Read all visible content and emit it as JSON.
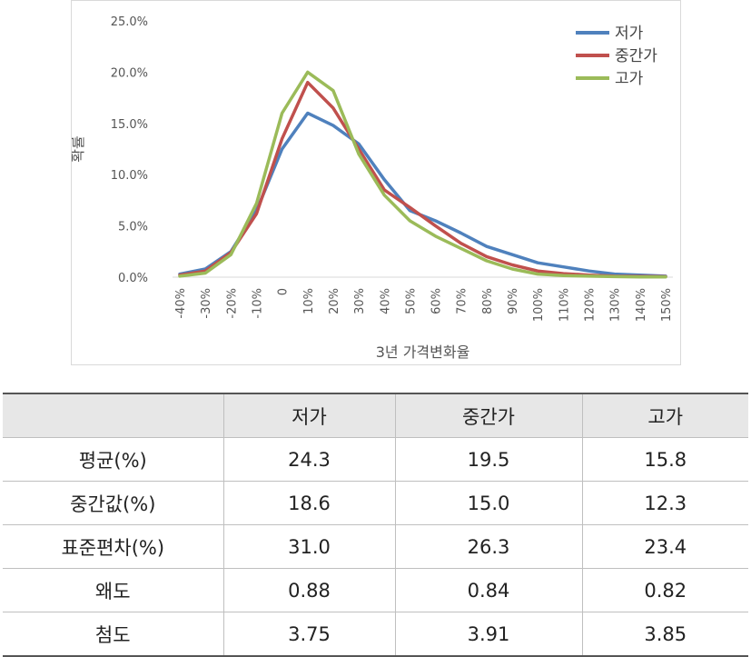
{
  "chart_data": {
    "type": "line",
    "x": [
      "-40%",
      "-30%",
      "-20%",
      "-10%",
      "0",
      "10%",
      "20%",
      "30%",
      "40%",
      "50%",
      "60%",
      "70%",
      "80%",
      "90%",
      "100%",
      "110%",
      "120%",
      "130%",
      "140%",
      "150%"
    ],
    "xlabel": "3년 가격변화율",
    "ylabel": "확률",
    "ylim": [
      0,
      25
    ],
    "yticks": [
      "0.0%",
      "5.0%",
      "10.0%",
      "15.0%",
      "20.0%",
      "25.0%"
    ],
    "grid": false,
    "legend_position": "top-right",
    "series": [
      {
        "name": "저가",
        "color": "#4f81bd",
        "values": [
          0.3,
          0.8,
          2.5,
          6.5,
          12.5,
          16.0,
          14.8,
          13.0,
          9.5,
          6.5,
          5.5,
          4.3,
          3.0,
          2.2,
          1.4,
          1.0,
          0.6,
          0.3,
          0.2,
          0.1
        ]
      },
      {
        "name": "중간가",
        "color": "#c0504d",
        "values": [
          0.2,
          0.6,
          2.4,
          6.2,
          13.5,
          19.0,
          16.5,
          12.5,
          8.5,
          6.8,
          5.0,
          3.3,
          2.0,
          1.2,
          0.6,
          0.35,
          0.2,
          0.1,
          0.08,
          0.05
        ]
      },
      {
        "name": "고가",
        "color": "#9bbb59",
        "values": [
          0.1,
          0.4,
          2.2,
          7.2,
          16.0,
          20.0,
          18.2,
          12.0,
          8.0,
          5.5,
          4.0,
          2.8,
          1.6,
          0.8,
          0.3,
          0.15,
          0.1,
          0.05,
          0.03,
          0.02
        ]
      }
    ]
  },
  "table": {
    "corner": "",
    "headers": [
      "저가",
      "중간가",
      "고가"
    ],
    "rows": [
      {
        "label": "평균(%)",
        "values": [
          "24.3",
          "19.5",
          "15.8"
        ]
      },
      {
        "label": "중간값(%)",
        "values": [
          "18.6",
          "15.0",
          "12.3"
        ]
      },
      {
        "label": "표준편차(%)",
        "values": [
          "31.0",
          "26.3",
          "23.4"
        ]
      },
      {
        "label": "왜도",
        "values": [
          "0.88",
          "0.84",
          "0.82"
        ]
      },
      {
        "label": "첨도",
        "values": [
          "3.75",
          "3.91",
          "3.85"
        ]
      }
    ]
  }
}
